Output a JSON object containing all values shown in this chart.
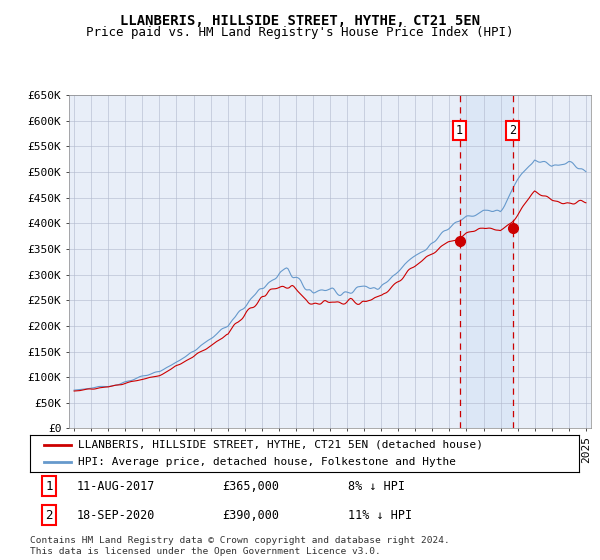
{
  "title": "LLANBERIS, HILLSIDE STREET, HYTHE, CT21 5EN",
  "subtitle": "Price paid vs. HM Land Registry's House Price Index (HPI)",
  "legend_label_red": "LLANBERIS, HILLSIDE STREET, HYTHE, CT21 5EN (detached house)",
  "legend_label_blue": "HPI: Average price, detached house, Folkestone and Hythe",
  "annotation1_label": "1",
  "annotation1_date": "11-AUG-2017",
  "annotation1_price": "£365,000",
  "annotation1_hpi": "8% ↓ HPI",
  "annotation2_label": "2",
  "annotation2_date": "18-SEP-2020",
  "annotation2_price": "£390,000",
  "annotation2_hpi": "11% ↓ HPI",
  "footnote": "Contains HM Land Registry data © Crown copyright and database right 2024.\nThis data is licensed under the Open Government Licence v3.0.",
  "year_start": 1995,
  "year_end": 2025,
  "ylim_min": 0,
  "ylim_max": 650000,
  "yticks": [
    0,
    50000,
    100000,
    150000,
    200000,
    250000,
    300000,
    350000,
    400000,
    450000,
    500000,
    550000,
    600000,
    650000
  ],
  "red_color": "#cc0000",
  "blue_color": "#6699cc",
  "background_color": "#e8eef8",
  "grid_color": "#b0b8cc",
  "sale1_year": 2017.6,
  "sale1_value": 365000,
  "sale2_year": 2020.72,
  "sale2_value": 390000,
  "title_fontsize": 10,
  "subtitle_fontsize": 9,
  "axis_fontsize": 8,
  "legend_fontsize": 8,
  "annotation_fontsize": 8.5
}
